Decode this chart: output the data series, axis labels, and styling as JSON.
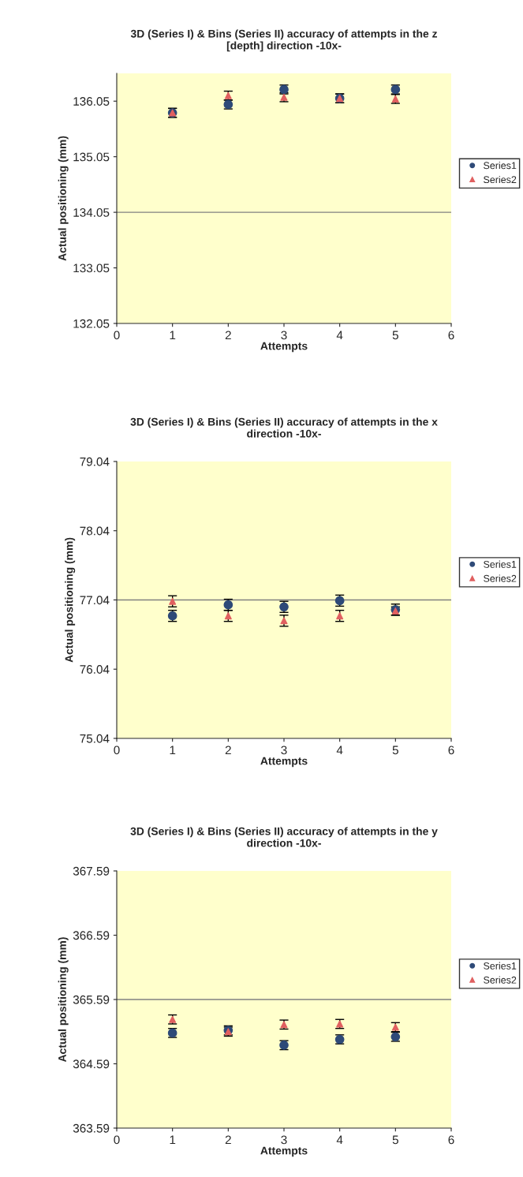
{
  "chart_data": [
    {
      "type": "scatter",
      "title": "3D (Series I) & Bins (Series II) accuracy of attempts in the z\n[depth] direction -10x-",
      "xlabel": "Attempts",
      "ylabel": "Actual positioning (mm)",
      "x": [
        1,
        2,
        3,
        4,
        5
      ],
      "xlim": [
        0,
        6
      ],
      "xticks": [
        0,
        1,
        2,
        3,
        4,
        5,
        6
      ],
      "ylim": [
        132.05,
        136.55
      ],
      "yticks": [
        132.05,
        133.05,
        134.05,
        135.05,
        136.05
      ],
      "grid": false,
      "legend": "right",
      "ref_lines": [
        {
          "axis": "y",
          "value": 134.05,
          "color": "#808080"
        }
      ],
      "series": [
        {
          "name": "Series1",
          "color": "#2e4a78",
          "marker": "circle",
          "values": [
            135.84,
            135.99,
            136.26,
            136.1,
            136.26
          ],
          "errors": [
            0.08,
            0.08,
            0.08,
            0.08,
            0.08
          ]
        },
        {
          "name": "Series2",
          "color": "#e06060",
          "marker": "triangle",
          "values": [
            135.84,
            136.15,
            136.12,
            136.1,
            136.09
          ],
          "errors": [
            0.08,
            0.08,
            0.08,
            0.08,
            0.08
          ]
        }
      ]
    },
    {
      "type": "scatter",
      "title": "3D (Series I) & Bins (Series II) accuracy of attempts in the x\ndirection -10x-",
      "xlabel": "Attempts",
      "ylabel": "Actual positioning (mm)",
      "x": [
        1,
        2,
        3,
        4,
        5
      ],
      "xlim": [
        0,
        6
      ],
      "xticks": [
        0,
        1,
        2,
        3,
        4,
        5,
        6
      ],
      "ylim": [
        75.04,
        79.04
      ],
      "yticks": [
        75.04,
        76.04,
        77.04,
        78.04,
        79.04
      ],
      "grid": false,
      "legend": "right",
      "ref_lines": [
        {
          "axis": "y",
          "value": 77.04,
          "color": "#808080"
        }
      ],
      "series": [
        {
          "name": "Series1",
          "color": "#2e4a78",
          "marker": "circle",
          "values": [
            76.81,
            76.97,
            76.94,
            77.03,
            76.9
          ],
          "errors": [
            0.08,
            0.08,
            0.08,
            0.08,
            0.08
          ]
        },
        {
          "name": "Series2",
          "color": "#e06060",
          "marker": "triangle",
          "values": [
            77.02,
            76.81,
            76.74,
            76.81,
            76.88
          ],
          "errors": [
            0.08,
            0.08,
            0.08,
            0.08,
            0.06
          ]
        }
      ]
    },
    {
      "type": "scatter",
      "title": "3D (Series I) & Bins (Series II) accuracy of attempts in the y\ndirection -10x-",
      "xlabel": "Attempts",
      "ylabel": "Actual positioning (mm)",
      "x": [
        1,
        2,
        3,
        4,
        5
      ],
      "xlim": [
        0,
        6
      ],
      "xticks": [
        0,
        1,
        2,
        3,
        4,
        5,
        6
      ],
      "ylim": [
        363.59,
        367.59
      ],
      "yticks": [
        363.59,
        364.59,
        365.59,
        366.59,
        367.59
      ],
      "grid": false,
      "legend": "right",
      "ref_lines": [
        {
          "axis": "y",
          "value": 365.59,
          "color": "#808080"
        }
      ],
      "series": [
        {
          "name": "Series1",
          "color": "#2e4a78",
          "marker": "circle",
          "values": [
            365.07,
            365.11,
            364.88,
            364.97,
            365.01
          ],
          "errors": [
            0.07,
            0.07,
            0.07,
            0.07,
            0.07
          ]
        },
        {
          "name": "Series2",
          "color": "#e06060",
          "marker": "triangle",
          "values": [
            365.28,
            365.09,
            365.2,
            365.21,
            365.16
          ],
          "errors": [
            0.07,
            0.07,
            0.07,
            0.07,
            0.07
          ]
        }
      ]
    }
  ]
}
